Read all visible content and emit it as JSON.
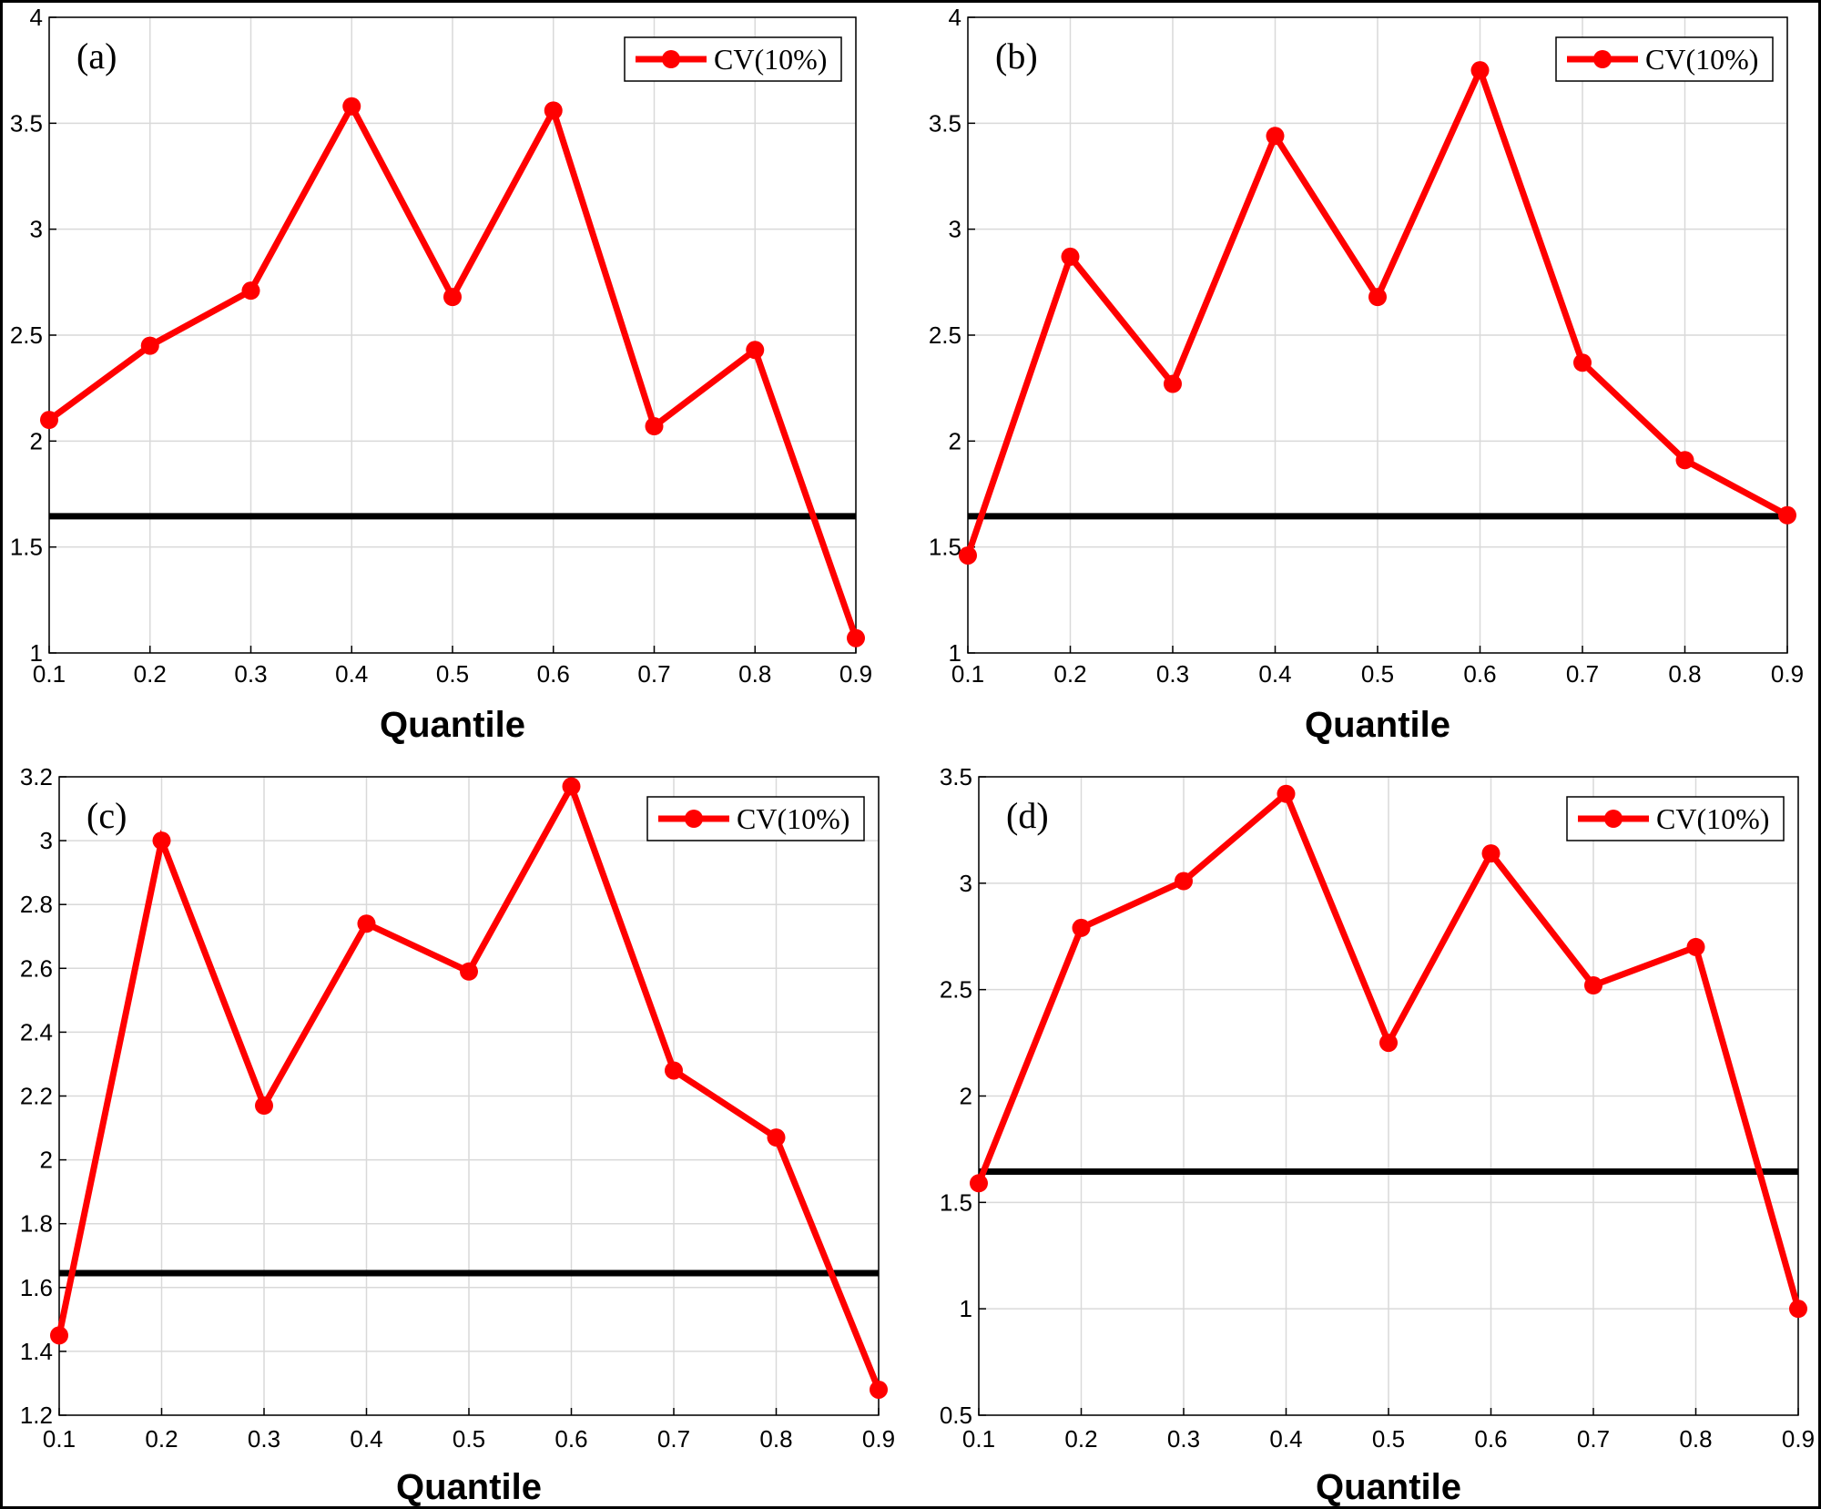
{
  "colors": {
    "series": "#ff0000",
    "reference_line": "#000000",
    "grid": "#d9d9d9",
    "axes": "#000000"
  },
  "chart_data": [
    {
      "type": "line",
      "panel_label": "(a)",
      "xlabel": "Quantile",
      "x": [
        0.1,
        0.2,
        0.3,
        0.4,
        0.5,
        0.6,
        0.7,
        0.8,
        0.9
      ],
      "xlim": [
        0.1,
        0.9
      ],
      "xticks": [
        "0.1",
        "0.2",
        "0.3",
        "0.4",
        "0.5",
        "0.6",
        "0.7",
        "0.8",
        "0.9"
      ],
      "ylim": [
        1,
        4
      ],
      "yticks": [
        "1",
        "1.5",
        "2",
        "2.5",
        "3",
        "3.5",
        "4"
      ],
      "series": [
        {
          "name": "CV(10%)",
          "values": [
            2.1,
            2.45,
            2.71,
            3.58,
            2.68,
            3.56,
            2.07,
            2.43,
            1.07
          ]
        }
      ],
      "reference_line": 1.645,
      "grid": true,
      "legend_position": "top-right"
    },
    {
      "type": "line",
      "panel_label": "(b)",
      "xlabel": "Quantile",
      "x": [
        0.1,
        0.2,
        0.3,
        0.4,
        0.5,
        0.6,
        0.7,
        0.8,
        0.9
      ],
      "xlim": [
        0.1,
        0.9
      ],
      "xticks": [
        "0.1",
        "0.2",
        "0.3",
        "0.4",
        "0.5",
        "0.6",
        "0.7",
        "0.8",
        "0.9"
      ],
      "ylim": [
        1,
        4
      ],
      "yticks": [
        "1",
        "1.5",
        "2",
        "2.5",
        "3",
        "3.5",
        "4"
      ],
      "series": [
        {
          "name": "CV(10%)",
          "values": [
            1.46,
            2.87,
            2.27,
            3.44,
            2.68,
            3.75,
            2.37,
            1.91,
            1.65
          ]
        }
      ],
      "reference_line": 1.645,
      "grid": true,
      "legend_position": "top-right"
    },
    {
      "type": "line",
      "panel_label": "(c)",
      "xlabel": "Quantile",
      "x": [
        0.1,
        0.2,
        0.3,
        0.4,
        0.5,
        0.6,
        0.7,
        0.8,
        0.9
      ],
      "xlim": [
        0.1,
        0.9
      ],
      "xticks": [
        "0.1",
        "0.2",
        "0.3",
        "0.4",
        "0.5",
        "0.6",
        "0.7",
        "0.8",
        "0.9"
      ],
      "ylim": [
        1.2,
        3.2
      ],
      "yticks": [
        "1.2",
        "1.4",
        "1.6",
        "1.8",
        "2",
        "2.2",
        "2.4",
        "2.6",
        "2.8",
        "3",
        "3.2"
      ],
      "series": [
        {
          "name": "CV(10%)",
          "values": [
            1.45,
            3.0,
            2.17,
            2.74,
            2.59,
            3.17,
            2.28,
            2.07,
            1.28
          ]
        }
      ],
      "reference_line": 1.645,
      "grid": true,
      "legend_position": "top-right"
    },
    {
      "type": "line",
      "panel_label": "(d)",
      "xlabel": "Quantile",
      "x": [
        0.1,
        0.2,
        0.3,
        0.4,
        0.5,
        0.6,
        0.7,
        0.8,
        0.9
      ],
      "xlim": [
        0.1,
        0.9
      ],
      "xticks": [
        "0.1",
        "0.2",
        "0.3",
        "0.4",
        "0.5",
        "0.6",
        "0.7",
        "0.8",
        "0.9"
      ],
      "ylim": [
        0.5,
        3.5
      ],
      "yticks": [
        "0.5",
        "1",
        "1.5",
        "2",
        "2.5",
        "3",
        "3.5"
      ],
      "series": [
        {
          "name": "CV(10%)",
          "values": [
            1.59,
            2.79,
            3.01,
            3.42,
            2.25,
            3.14,
            2.52,
            2.7,
            1.0
          ]
        }
      ],
      "reference_line": 1.645,
      "grid": true,
      "legend_position": "top-right"
    }
  ]
}
